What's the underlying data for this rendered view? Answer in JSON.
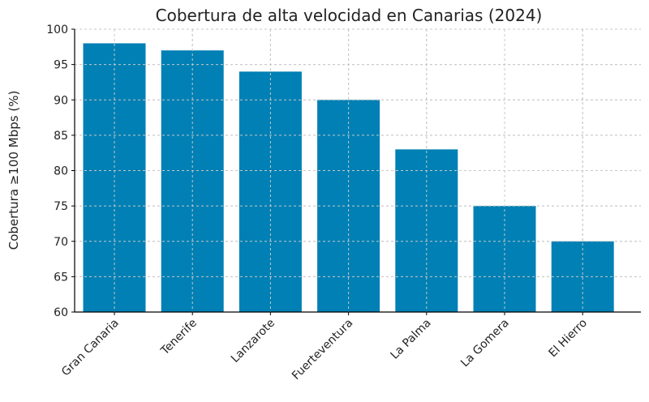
{
  "chart_data": {
    "type": "bar",
    "title": "Cobertura de alta velocidad en Canarias (2024)",
    "xlabel": "",
    "ylabel": "Cobertura ≥100 Mbps (%)",
    "categories": [
      "Gran Canaria",
      "Tenerife",
      "Lanzarote",
      "Fuerteventura",
      "La Palma",
      "La Gomera",
      "El Hierro"
    ],
    "values": [
      98,
      97,
      94,
      90,
      83,
      75,
      70
    ],
    "ylim": [
      60,
      100
    ],
    "yticks": [
      60,
      65,
      70,
      75,
      80,
      85,
      90,
      95,
      100
    ],
    "grid": true,
    "grid_style": "dashed",
    "bar_color": "#0080b4",
    "x_tick_rotation": 45
  }
}
